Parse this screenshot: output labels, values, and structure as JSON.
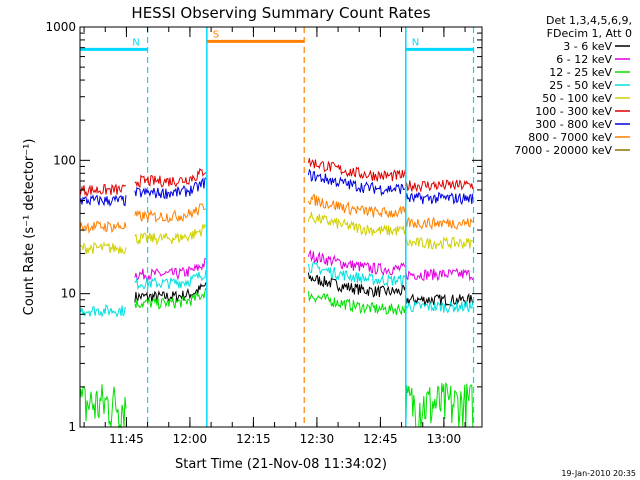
{
  "chart_data": {
    "type": "line",
    "title": "HESSI Observing Summary Count Rates",
    "xlabel": "Start Time (21-Nov-08 11:34:02)",
    "ylabel": "Count Rate (s⁻¹ detector⁻¹)",
    "yscale": "log",
    "ylim": [
      1,
      1000
    ],
    "xlim": [
      "11:34:02",
      "13:09"
    ],
    "x_ticks": [
      "11:45",
      "12:00",
      "12:15",
      "12:30",
      "12:45",
      "13:00"
    ],
    "y_ticks": [
      "1",
      "10",
      "100",
      "1000"
    ],
    "legend_header": [
      "Det 1,3,4,5,6,9,",
      "FDecim 1, Att 0"
    ],
    "legend_position": "top-right, outside plot",
    "timestamp": "19-Jan-2010 20:35",
    "markers": [
      {
        "label": "N",
        "color": "#00d8ff",
        "level": 680,
        "start": "11:34:02",
        "end": "11:50"
      },
      {
        "label": "N",
        "color": "#00d8ff",
        "level": 680,
        "start": "12:51",
        "end": "13:07"
      },
      {
        "label": "S",
        "color": "#ff8000",
        "level": 780,
        "start": "12:04",
        "end": "12:27"
      }
    ],
    "dashed_lines": [
      {
        "time": "11:50",
        "color": "#00d8ff"
      },
      {
        "time": "12:51",
        "color": "#00d8ff"
      },
      {
        "time": "12:27",
        "color": "#ff8000"
      },
      {
        "time": "13:07",
        "color": "#00d8ff"
      }
    ],
    "segments": [
      [
        "11:34:02",
        "11:45"
      ],
      [
        "11:47",
        "12:04"
      ],
      [
        "12:28",
        "12:51"
      ],
      [
        "12:51",
        "13:07"
      ]
    ],
    "series": [
      {
        "name": "3 - 6 keV",
        "color": "#000000",
        "values": [
          null,
          9.5,
          11.5,
          9
        ]
      },
      {
        "name": "6 - 12 keV",
        "color": "#e000e0",
        "values": [
          null,
          14,
          17,
          14
        ]
      },
      {
        "name": "12 - 25 keV",
        "color": "#00e000",
        "values": [
          1.5,
          8.5,
          8.5,
          1.5
        ]
      },
      {
        "name": "25 - 50 keV",
        "color": "#00e0e0",
        "values": [
          7.5,
          12,
          14,
          8
        ]
      },
      {
        "name": "50 - 100 keV",
        "color": "#d0d000",
        "values": [
          22,
          26,
          33,
          24
        ]
      },
      {
        "name": "100 - 300 keV",
        "color": "#e00000",
        "values": [
          60,
          70,
          85,
          65
        ]
      },
      {
        "name": "300 - 800 keV",
        "color": "#0000e0",
        "values": [
          50,
          57,
          68,
          52
        ]
      },
      {
        "name": "800 - 7000 keV",
        "color": "#ff8000",
        "values": [
          32,
          38,
          45,
          34
        ]
      },
      {
        "name": "7000 - 20000 keV",
        "color": "#907000",
        "values": [
          null,
          null,
          null,
          null
        ]
      }
    ]
  }
}
